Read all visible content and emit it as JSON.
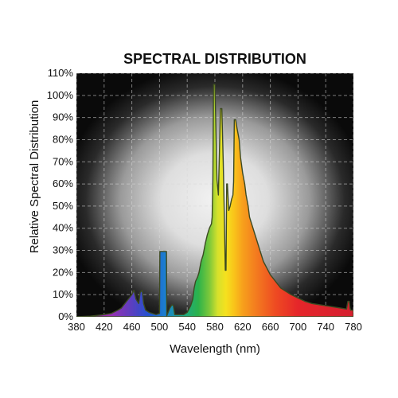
{
  "chart_data": {
    "type": "area",
    "title": "SPECTRAL DISTRIBUTION",
    "xlabel": "Wavelength (nm)",
    "ylabel": "Relative Spectral Distribution",
    "xlim": [
      380,
      780
    ],
    "ylim": [
      0,
      110
    ],
    "x_ticks": [
      "380",
      "420",
      "460",
      "500",
      "540",
      "580",
      "620",
      "660",
      "700",
      "740",
      "780"
    ],
    "y_ticks": [
      "0%",
      "10%",
      "20%",
      "30%",
      "40%",
      "50%",
      "60%",
      "70%",
      "80%",
      "90%",
      "100%",
      "110%"
    ],
    "grid": true,
    "background": "dark with radial glow",
    "colors": {
      "plot_background": "#0a0a0a",
      "glow_center": "#f2f2f2",
      "grid": "#d8d8d8",
      "outline": "#3c4a22"
    },
    "series": [
      {
        "x": [
          380,
          400,
          420,
          430,
          440,
          445,
          450,
          455,
          460,
          463,
          466,
          470,
          472,
          475,
          477,
          480,
          485,
          490,
          495,
          500,
          500.5,
          510,
          510.5,
          515,
          518,
          520,
          522,
          528,
          535,
          540,
          545,
          548,
          550,
          552,
          555,
          557,
          560,
          563,
          566,
          569,
          572,
          575,
          576,
          577,
          578,
          580,
          582,
          583,
          585,
          588,
          590,
          592,
          593,
          595,
          596,
          597,
          598,
          600,
          602,
          604,
          606,
          607,
          608,
          610,
          612,
          615,
          617,
          620,
          623,
          625,
          628,
          630,
          635,
          640,
          645,
          650,
          655,
          660,
          665,
          670,
          675,
          680,
          690,
          700,
          710,
          720,
          730,
          740,
          750,
          760,
          770,
          772,
          774,
          775,
          776,
          777,
          780
        ],
        "y": [
          0,
          0.3,
          1,
          1.5,
          3,
          4,
          6,
          8,
          10,
          12,
          8,
          6,
          11,
          12,
          6,
          3,
          2,
          1.5,
          1,
          1.5,
          29.5,
          29.5,
          0.5,
          4,
          5.5,
          5,
          1,
          1,
          1,
          2,
          5,
          8,
          13,
          16,
          18,
          20,
          25,
          28,
          33,
          37,
          40,
          42,
          45,
          62,
          105,
          105,
          77,
          62,
          55,
          94,
          94,
          70,
          55,
          21,
          21,
          60,
          60,
          48,
          50,
          53,
          55,
          61,
          89,
          89,
          85,
          80,
          72,
          65,
          60,
          55,
          50,
          45,
          40,
          35,
          30,
          25,
          22,
          19,
          17,
          15,
          13,
          12,
          10,
          8.5,
          7,
          6,
          5.5,
          5,
          4.5,
          4,
          3.5,
          7,
          7,
          4,
          3,
          3,
          3
        ]
      }
    ],
    "peaks": [
      {
        "x": 500,
        "y": 29.5
      },
      {
        "x": 580,
        "y": 105
      },
      {
        "x": 610,
        "y": 89
      }
    ]
  }
}
